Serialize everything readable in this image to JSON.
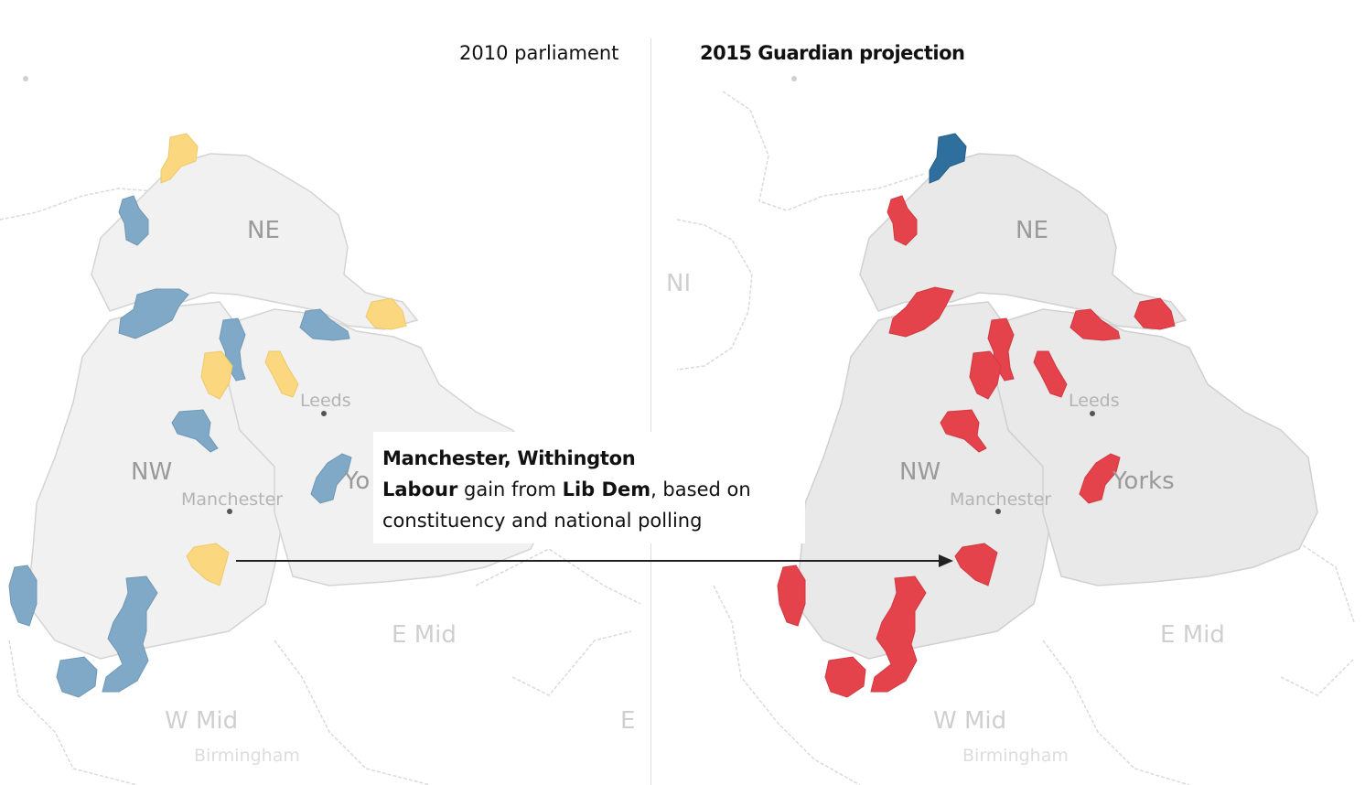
{
  "panels": {
    "left_title": "2010 parliament",
    "right_title": "2015 Guardian projection"
  },
  "colors": {
    "conservative": "#7fa9c6",
    "conservative_projection": "#2f6f9e",
    "lib_dem": "#fbd87f",
    "labour": "#e5434c",
    "region_fill": "#e9e9e9",
    "region_fill_left": "#f1f1f1",
    "border": "#d4d4d4"
  },
  "regions": {
    "ne": "NE",
    "nw": "NW",
    "yorks": "Yorks",
    "yorks_left_partial": "Yo",
    "e_mid": "E Mid",
    "w_mid": "W Mid",
    "ni_partial": "NI",
    "e_partial": "E"
  },
  "cities": {
    "leeds": "Leeds",
    "manchester": "Manchester",
    "birmingham": "Birmingham"
  },
  "tooltip": {
    "constituency": "Manchester, Withington",
    "party_to": "Labour",
    "gain_from_text": "gain from",
    "party_from": "Lib Dem",
    "basis_text": ", based on",
    "basis_line2": "constituency and national polling"
  },
  "transition": {
    "constituency": "Manchester, Withington",
    "from_party": "Lib Dem",
    "to_party": "Labour"
  }
}
